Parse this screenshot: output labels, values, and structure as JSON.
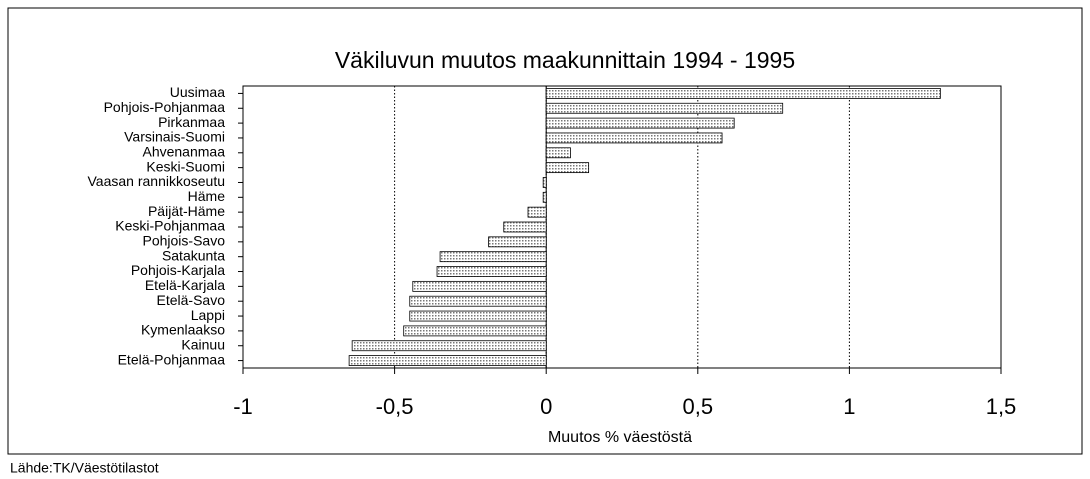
{
  "chart_data": {
    "type": "hbar",
    "title": "Väkiluvun muutos maakunnittain 1994 - 1995",
    "x_label": "Muutos % väestöstä",
    "source": "Lähde:TK/Väestötilastot",
    "categories": [
      "Uusimaa",
      "Pohjois-Pohjanmaa",
      "Pirkanmaa",
      "Varsinais-Suomi",
      "Ahvenanmaa",
      "Keski-Suomi",
      "Vaasan rannikkoseutu",
      "Häme",
      "Päijät-Häme",
      "Keski-Pohjanmaa",
      "Pohjois-Savo",
      "Satakunta",
      "Pohjois-Karjala",
      "Etelä-Karjala",
      "Etelä-Savo",
      "Lappi",
      "Kymenlaakso",
      "Kainuu",
      "Etelä-Pohjanmaa"
    ],
    "values": [
      1.3,
      0.78,
      0.62,
      0.58,
      0.08,
      0.14,
      -0.01,
      -0.01,
      -0.06,
      -0.14,
      -0.19,
      -0.35,
      -0.36,
      -0.44,
      -0.45,
      -0.45,
      -0.47,
      -0.64,
      -0.65
    ],
    "color": "#c8c8c8",
    "xlim": [
      -1,
      1.5
    ],
    "xticks": [
      -1,
      {
        "value": -0.5,
        "label": "-0,5"
      },
      0,
      {
        "value": 0.5,
        "label": "0,5"
      },
      1,
      {
        "value": 1.5,
        "label": "1,5"
      }
    ],
    "grid": true
  }
}
